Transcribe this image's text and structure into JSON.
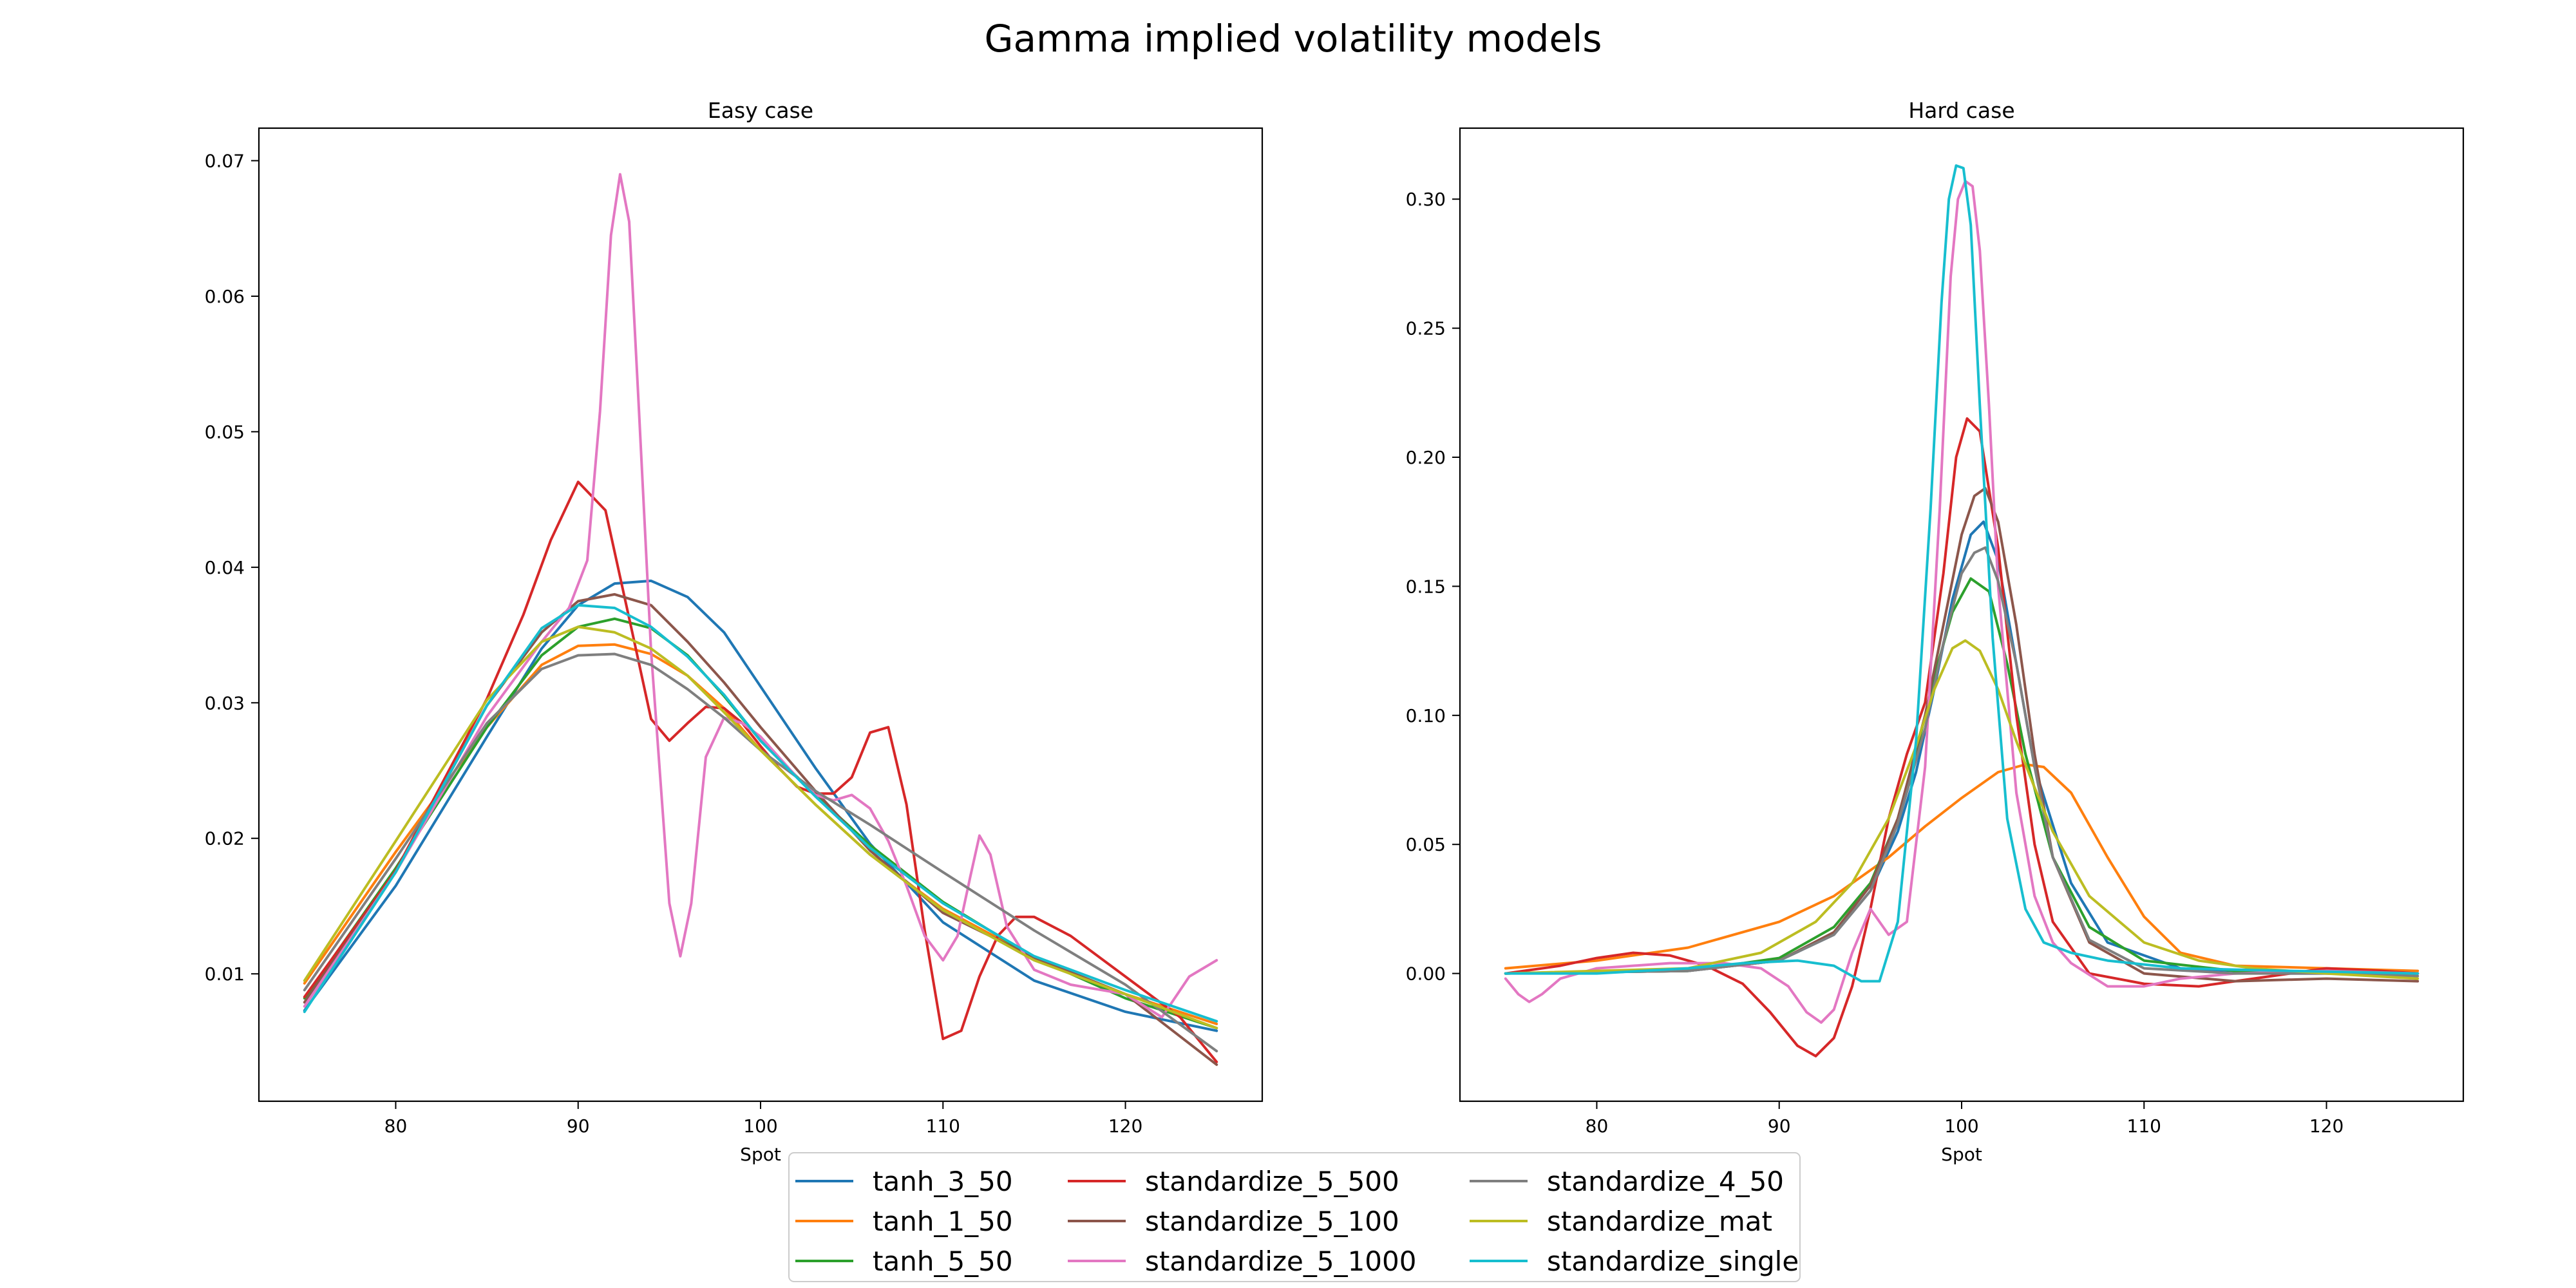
{
  "figure": {
    "title": "Gamma implied volatility models"
  },
  "legend": {
    "placement": "bottom-center",
    "columns": 3,
    "entries": [
      {
        "name": "tanh_3_50",
        "color": "#1f77b4"
      },
      {
        "name": "tanh_1_50",
        "color": "#ff7f0e"
      },
      {
        "name": "tanh_5_50",
        "color": "#2ca02c"
      },
      {
        "name": "standardize_5_500",
        "color": "#d62728"
      },
      {
        "name": "standardize_5_100",
        "color": "#8c564b"
      },
      {
        "name": "standardize_5_1000",
        "color": "#e377c2"
      },
      {
        "name": "standardize_4_50",
        "color": "#7f7f7f"
      },
      {
        "name": "standardize_mat",
        "color": "#bcbd22"
      },
      {
        "name": "standardize_single",
        "color": "#17becf"
      }
    ]
  },
  "chart_data": [
    {
      "type": "line",
      "title": "Easy case",
      "xlabel": "Spot",
      "ylabel": "",
      "xlim": [
        72.5,
        127.5
      ],
      "ylim": [
        0.0006,
        0.0724
      ],
      "xticks": [
        80,
        90,
        100,
        110,
        120
      ],
      "xtick_labels": [
        "80",
        "90",
        "100",
        "110",
        "120"
      ],
      "yticks": [
        0.01,
        0.02,
        0.03,
        0.04,
        0.05,
        0.06,
        0.07
      ],
      "ytick_labels": [
        "0.01",
        "0.02",
        "0.03",
        "0.04",
        "0.05",
        "0.06",
        "0.07"
      ],
      "grid": false,
      "series": [
        {
          "name": "tanh_3_50",
          "color": "#1f77b4",
          "x": [
            75,
            80,
            85,
            88,
            90,
            92,
            94,
            96,
            98,
            100,
            103,
            106,
            110,
            115,
            120,
            125
          ],
          "y": [
            0.0073,
            0.0165,
            0.0275,
            0.034,
            0.0372,
            0.0388,
            0.039,
            0.0378,
            0.0352,
            0.0312,
            0.0252,
            0.0196,
            0.0138,
            0.0095,
            0.0072,
            0.0058
          ]
        },
        {
          "name": "tanh_1_50",
          "color": "#ff7f0e",
          "x": [
            75,
            80,
            85,
            88,
            90,
            92,
            94,
            96,
            98,
            100,
            103,
            106,
            110,
            115,
            120,
            125
          ],
          "y": [
            0.0093,
            0.019,
            0.0282,
            0.0328,
            0.0342,
            0.0343,
            0.0336,
            0.032,
            0.0296,
            0.0265,
            0.0225,
            0.0188,
            0.0148,
            0.0112,
            0.0085,
            0.0063
          ]
        },
        {
          "name": "tanh_5_50",
          "color": "#2ca02c",
          "x": [
            75,
            80,
            85,
            88,
            90,
            92,
            94,
            96,
            98,
            100,
            103,
            106,
            110,
            115,
            120,
            125
          ],
          "y": [
            0.0082,
            0.0178,
            0.0282,
            0.0335,
            0.0356,
            0.0362,
            0.0355,
            0.0335,
            0.0305,
            0.0272,
            0.0232,
            0.0195,
            0.0153,
            0.0112,
            0.0082,
            0.006
          ]
        },
        {
          "name": "standardize_5_500",
          "color": "#d62728",
          "x": [
            75,
            80,
            85,
            87,
            88.5,
            90,
            91.5,
            93,
            94,
            95,
            96,
            97,
            98,
            99,
            100,
            101,
            102,
            103,
            104,
            105,
            106,
            107,
            108,
            109,
            110,
            111,
            112,
            113,
            114,
            115,
            117,
            120,
            123,
            125
          ],
          "y": [
            0.0083,
            0.0176,
            0.0303,
            0.0365,
            0.042,
            0.0463,
            0.0442,
            0.035,
            0.0288,
            0.0272,
            0.0285,
            0.0297,
            0.0296,
            0.0285,
            0.0268,
            0.0252,
            0.0238,
            0.0233,
            0.0233,
            0.0245,
            0.0278,
            0.0282,
            0.0225,
            0.0132,
            0.0052,
            0.0058,
            0.0098,
            0.0128,
            0.0142,
            0.0142,
            0.0128,
            0.0098,
            0.0068,
            0.0035
          ]
        },
        {
          "name": "standardize_5_100",
          "color": "#8c564b",
          "x": [
            75,
            80,
            85,
            88,
            90,
            92,
            94,
            96,
            98,
            100,
            103,
            106,
            110,
            115,
            120,
            125
          ],
          "y": [
            0.0079,
            0.0175,
            0.0298,
            0.0352,
            0.0375,
            0.038,
            0.0372,
            0.0345,
            0.0315,
            0.0282,
            0.0235,
            0.0191,
            0.0145,
            0.0112,
            0.0085,
            0.0033
          ]
        },
        {
          "name": "standardize_5_1000",
          "color": "#e377c2",
          "x": [
            75,
            80,
            85,
            88,
            89.5,
            90.5,
            91.2,
            91.8,
            92.3,
            92.8,
            93.3,
            94,
            95,
            95.6,
            96.2,
            97,
            98,
            99,
            100,
            101,
            102,
            103,
            104,
            105,
            106,
            107,
            108,
            109,
            110,
            110.8,
            111.5,
            112,
            112.6,
            113.5,
            115,
            117,
            120,
            122,
            123.5,
            125
          ],
          "y": [
            0.0076,
            0.0175,
            0.029,
            0.0345,
            0.037,
            0.0405,
            0.0515,
            0.0645,
            0.069,
            0.0655,
            0.0525,
            0.0338,
            0.0152,
            0.0113,
            0.0152,
            0.026,
            0.0289,
            0.0285,
            0.0275,
            0.026,
            0.0245,
            0.0232,
            0.0228,
            0.0232,
            0.0222,
            0.0198,
            0.0165,
            0.0128,
            0.011,
            0.0128,
            0.0172,
            0.0202,
            0.0188,
            0.0135,
            0.0103,
            0.0092,
            0.0085,
            0.0068,
            0.0098,
            0.011
          ]
        },
        {
          "name": "standardize_4_50",
          "color": "#7f7f7f",
          "x": [
            75,
            80,
            85,
            88,
            90,
            92,
            94,
            96,
            98,
            100,
            103,
            106,
            110,
            115,
            120,
            125
          ],
          "y": [
            0.0088,
            0.0185,
            0.0285,
            0.0325,
            0.0335,
            0.0336,
            0.0328,
            0.031,
            0.0289,
            0.0265,
            0.0235,
            0.021,
            0.0175,
            0.0132,
            0.0092,
            0.0043
          ]
        },
        {
          "name": "standardize_mat",
          "color": "#bcbd22",
          "x": [
            75,
            80,
            85,
            88,
            90,
            92,
            94,
            96,
            98,
            100,
            103,
            106,
            110,
            115,
            120,
            125
          ],
          "y": [
            0.0095,
            0.0198,
            0.0302,
            0.0345,
            0.0356,
            0.0352,
            0.034,
            0.032,
            0.0293,
            0.0265,
            0.0225,
            0.0188,
            0.0147,
            0.011,
            0.0085,
            0.006
          ]
        },
        {
          "name": "standardize_single",
          "color": "#17becf",
          "x": [
            75,
            80,
            85,
            88,
            90,
            92,
            94,
            96,
            98,
            100,
            103,
            106,
            110,
            115,
            120,
            125
          ],
          "y": [
            0.0072,
            0.0175,
            0.0298,
            0.0355,
            0.0372,
            0.037,
            0.0356,
            0.0334,
            0.0306,
            0.0272,
            0.0231,
            0.0193,
            0.0152,
            0.0113,
            0.0088,
            0.0065
          ]
        }
      ]
    },
    {
      "type": "line",
      "title": "Hard case",
      "xlabel": "Spot",
      "ylabel": "",
      "xlim": [
        72.5,
        127.5
      ],
      "ylim": [
        -0.0495,
        0.3275
      ],
      "xticks": [
        80,
        90,
        100,
        110,
        120
      ],
      "xtick_labels": [
        "80",
        "90",
        "100",
        "110",
        "120"
      ],
      "yticks": [
        0.0,
        0.05,
        0.1,
        0.15,
        0.2,
        0.25,
        0.3
      ],
      "ytick_labels": [
        "0.00",
        "0.05",
        "0.10",
        "0.15",
        "0.20",
        "0.25",
        "0.30"
      ],
      "grid": false,
      "series": [
        {
          "name": "tanh_3_50",
          "color": "#1f77b4",
          "x": [
            75,
            85,
            90,
            93,
            95,
            96.5,
            97.5,
            98.5,
            99.5,
            100.5,
            101.2,
            102,
            103,
            104,
            106,
            108,
            112,
            118,
            125
          ],
          "y": [
            0.0,
            0.001,
            0.005,
            0.015,
            0.032,
            0.055,
            0.078,
            0.11,
            0.145,
            0.17,
            0.175,
            0.16,
            0.12,
            0.08,
            0.035,
            0.012,
            0.002,
            0.0,
            0.0
          ]
        },
        {
          "name": "tanh_1_50",
          "color": "#ff7f0e",
          "x": [
            75,
            80,
            85,
            90,
            93,
            96,
            98,
            100,
            102,
            103.5,
            104.5,
            106,
            108,
            110,
            112,
            115,
            120,
            125
          ],
          "y": [
            0.002,
            0.005,
            0.01,
            0.02,
            0.03,
            0.045,
            0.057,
            0.068,
            0.078,
            0.081,
            0.08,
            0.07,
            0.045,
            0.022,
            0.008,
            0.003,
            0.002,
            0.001
          ]
        },
        {
          "name": "tanh_5_50",
          "color": "#2ca02c",
          "x": [
            75,
            85,
            90,
            93,
            95,
            96.5,
            97.5,
            98.5,
            99.5,
            100.5,
            101.5,
            102.5,
            103.5,
            105,
            107,
            110,
            115,
            125
          ],
          "y": [
            0.0,
            0.001,
            0.006,
            0.018,
            0.035,
            0.06,
            0.085,
            0.115,
            0.14,
            0.153,
            0.148,
            0.12,
            0.085,
            0.045,
            0.018,
            0.005,
            0.001,
            0.0
          ]
        },
        {
          "name": "standardize_5_500",
          "color": "#d62728",
          "x": [
            75,
            78,
            80,
            82,
            84,
            86,
            88,
            89.5,
            91,
            92,
            93,
            94,
            95,
            96,
            97,
            98,
            99,
            99.7,
            100.3,
            101,
            102,
            103,
            104,
            105,
            107,
            110,
            113,
            116,
            120,
            123,
            125
          ],
          "y": [
            0.0,
            0.003,
            0.006,
            0.008,
            0.007,
            0.003,
            -0.004,
            -0.015,
            -0.028,
            -0.032,
            -0.025,
            -0.005,
            0.025,
            0.06,
            0.085,
            0.105,
            0.155,
            0.2,
            0.215,
            0.21,
            0.165,
            0.1,
            0.05,
            0.02,
            0.0,
            -0.004,
            -0.005,
            -0.002,
            0.002,
            0.001,
            0.0
          ]
        },
        {
          "name": "standardize_5_100",
          "color": "#8c564b",
          "x": [
            75,
            85,
            90,
            93,
            95,
            96.5,
            98,
            99,
            100,
            100.7,
            101.3,
            102,
            103,
            104,
            105,
            107,
            110,
            115,
            120,
            125
          ],
          "y": [
            0.0,
            0.001,
            0.005,
            0.016,
            0.034,
            0.06,
            0.1,
            0.135,
            0.17,
            0.185,
            0.188,
            0.175,
            0.135,
            0.085,
            0.045,
            0.012,
            0.0,
            -0.003,
            -0.002,
            -0.003
          ]
        },
        {
          "name": "standardize_5_1000",
          "color": "#e377c2",
          "x": [
            75,
            75.7,
            76.3,
            77,
            78,
            80,
            84,
            87,
            89,
            90.5,
            91.5,
            92.3,
            93,
            94,
            95,
            96,
            97,
            98,
            98.8,
            99.4,
            99.8,
            100.2,
            100.6,
            101,
            101.5,
            102,
            103,
            104,
            105,
            106,
            108,
            110,
            112,
            115,
            120,
            125
          ],
          "y": [
            -0.002,
            -0.008,
            -0.011,
            -0.008,
            -0.002,
            0.002,
            0.004,
            0.004,
            0.002,
            -0.005,
            -0.015,
            -0.019,
            -0.014,
            0.008,
            0.025,
            0.015,
            0.02,
            0.08,
            0.18,
            0.27,
            0.3,
            0.307,
            0.305,
            0.28,
            0.22,
            0.15,
            0.07,
            0.03,
            0.012,
            0.004,
            -0.005,
            -0.005,
            -0.002,
            0.0,
            0.001,
            0.0
          ]
        },
        {
          "name": "standardize_4_50",
          "color": "#7f7f7f",
          "x": [
            75,
            85,
            90,
            93,
            95,
            96.5,
            98,
            99,
            100,
            100.7,
            101.3,
            102,
            103,
            104,
            105,
            107,
            110,
            115,
            120,
            125
          ],
          "y": [
            0.0,
            0.001,
            0.005,
            0.015,
            0.032,
            0.058,
            0.095,
            0.128,
            0.155,
            0.163,
            0.165,
            0.152,
            0.12,
            0.08,
            0.045,
            0.013,
            0.002,
            0.0,
            0.0,
            -0.001
          ]
        },
        {
          "name": "standardize_mat",
          "color": "#bcbd22",
          "x": [
            75,
            85,
            89,
            92,
            94,
            96,
            97.5,
            98.5,
            99.5,
            100.2,
            101,
            102,
            103,
            104,
            105,
            107,
            110,
            113,
            116,
            120,
            125
          ],
          "y": [
            0.0,
            0.002,
            0.008,
            0.02,
            0.035,
            0.06,
            0.088,
            0.11,
            0.126,
            0.129,
            0.125,
            0.11,
            0.09,
            0.072,
            0.055,
            0.03,
            0.012,
            0.005,
            0.002,
            0.0,
            -0.002
          ]
        },
        {
          "name": "standardize_single",
          "color": "#17becf",
          "x": [
            75,
            80,
            85,
            88,
            91,
            93,
            94.5,
            95.5,
            96.5,
            97.5,
            98.3,
            98.9,
            99.3,
            99.7,
            100.1,
            100.5,
            101,
            101.7,
            102.5,
            103.5,
            104.5,
            106,
            108,
            112,
            118,
            125
          ],
          "y": [
            0.0,
            0.0,
            0.002,
            0.004,
            0.005,
            0.003,
            -0.003,
            -0.003,
            0.02,
            0.09,
            0.18,
            0.26,
            0.3,
            0.313,
            0.312,
            0.29,
            0.22,
            0.13,
            0.06,
            0.025,
            0.012,
            0.008,
            0.005,
            0.002,
            0.001,
            0.0
          ]
        }
      ]
    }
  ]
}
